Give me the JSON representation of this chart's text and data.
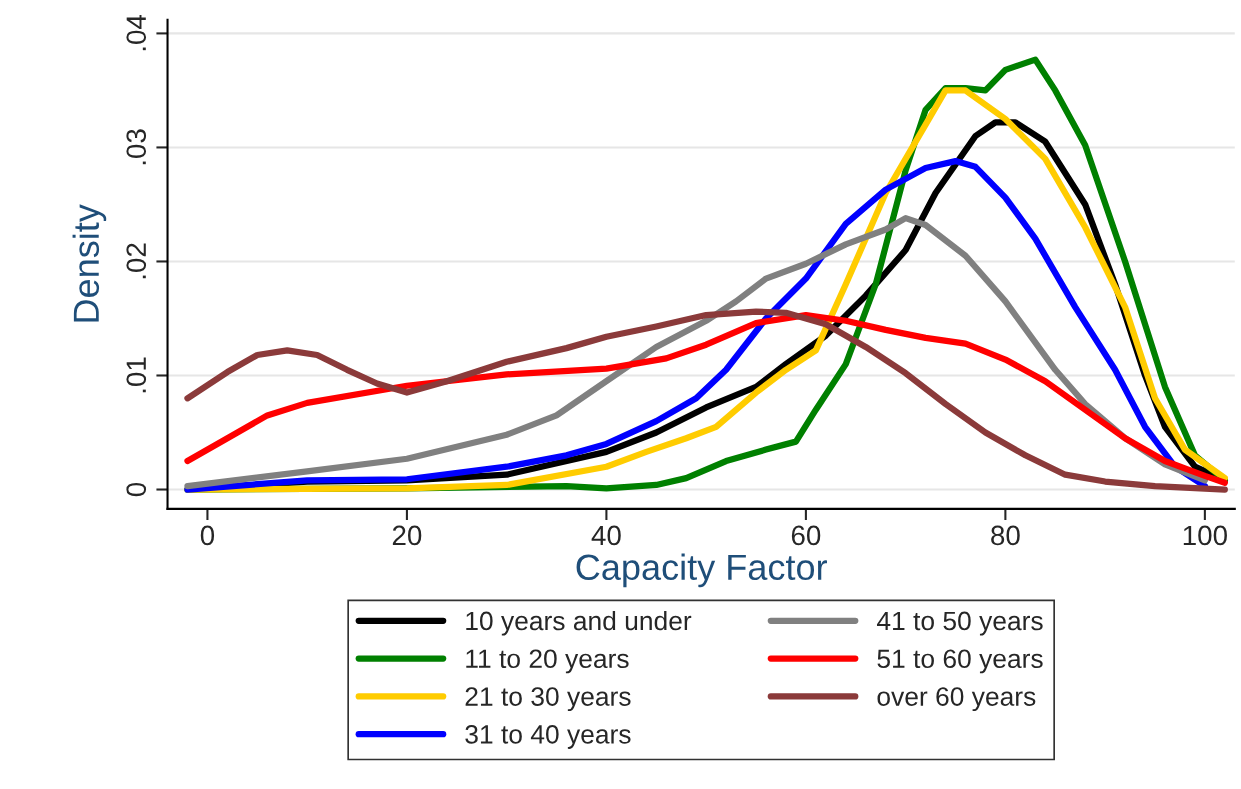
{
  "chart_data": {
    "type": "line",
    "xlabel": "Capacity Factor",
    "ylabel": "Density",
    "xlim": [
      -4,
      103
    ],
    "ylim": [
      -0.0017,
      0.0412
    ],
    "xticks": [
      0,
      20,
      40,
      60,
      80,
      100
    ],
    "yticks": [
      {
        "value": 0,
        "label": "0"
      },
      {
        "value": 0.01,
        "label": ".01"
      },
      {
        "value": 0.02,
        "label": ".02"
      },
      {
        "value": 0.03,
        "label": ".03"
      },
      {
        "value": 0.04,
        "label": ".04"
      }
    ],
    "grid": "y",
    "legend": "bottom",
    "line_style": "solid",
    "marker": "none",
    "series": [
      {
        "name": "10 years and under",
        "color": "#000000",
        "x": [
          -2,
          10,
          20,
          30,
          40,
          45,
          50,
          55,
          58,
          62,
          66,
          70,
          73,
          77,
          79,
          81,
          84,
          88,
          91,
          94,
          96,
          99,
          102
        ],
        "values": [
          0,
          0.0007,
          0.0008,
          0.0013,
          0.0033,
          0.005,
          0.0072,
          0.009,
          0.011,
          0.0135,
          0.017,
          0.021,
          0.026,
          0.031,
          0.0322,
          0.0322,
          0.0305,
          0.025,
          0.018,
          0.01,
          0.0055,
          0.002,
          0.0008
        ]
      },
      {
        "name": "11 to 20 years",
        "color": "#008000",
        "x": [
          -2,
          20,
          36,
          40,
          45,
          48,
          52,
          56,
          59,
          61,
          64,
          67,
          70,
          72,
          74,
          76,
          78,
          80,
          83,
          85,
          88,
          92,
          96,
          99,
          102
        ],
        "values": [
          0,
          0.0001,
          0.0003,
          0.0001,
          0.0004,
          0.001,
          0.0025,
          0.0035,
          0.0042,
          0.007,
          0.011,
          0.018,
          0.028,
          0.0333,
          0.0352,
          0.0352,
          0.035,
          0.0368,
          0.0377,
          0.035,
          0.0302,
          0.02,
          0.009,
          0.003,
          0.0008
        ]
      },
      {
        "name": "21 to 30 years",
        "color": "#ffcc00",
        "x": [
          -2,
          20,
          30,
          40,
          44,
          48,
          51,
          55,
          58,
          61,
          64,
          68,
          72,
          74,
          76,
          80,
          84,
          88,
          92,
          95,
          98,
          102
        ],
        "values": [
          0,
          0.0001,
          0.0004,
          0.002,
          0.0033,
          0.0045,
          0.0055,
          0.0085,
          0.0105,
          0.0122,
          0.018,
          0.026,
          0.032,
          0.035,
          0.035,
          0.0325,
          0.029,
          0.023,
          0.016,
          0.008,
          0.0035,
          0.001
        ]
      },
      {
        "name": "31 to 40 years",
        "color": "#0000ff",
        "x": [
          -2,
          10,
          20,
          30,
          36,
          40,
          45,
          49,
          52,
          56,
          60,
          64,
          68,
          72,
          75,
          77,
          80,
          83,
          87,
          91,
          94,
          97,
          100
        ],
        "values": [
          0,
          0.0008,
          0.0009,
          0.002,
          0.003,
          0.004,
          0.006,
          0.008,
          0.0105,
          0.015,
          0.0185,
          0.0233,
          0.0263,
          0.0282,
          0.0288,
          0.0283,
          0.0256,
          0.022,
          0.016,
          0.0105,
          0.0055,
          0.002,
          0.0003
        ]
      },
      {
        "name": "41 to 50 years",
        "color": "#808080",
        "x": [
          -2,
          10,
          20,
          30,
          35,
          40,
          45,
          50,
          53,
          56,
          60,
          64,
          68,
          70,
          72,
          76,
          80,
          85,
          88,
          92,
          96,
          100
        ],
        "values": [
          0.0003,
          0.0016,
          0.0027,
          0.0048,
          0.0065,
          0.0095,
          0.0125,
          0.0148,
          0.0165,
          0.0185,
          0.0198,
          0.0215,
          0.0228,
          0.0238,
          0.0232,
          0.0205,
          0.0165,
          0.0105,
          0.0075,
          0.0045,
          0.0022,
          0.0008
        ]
      },
      {
        "name": "51 to 60 years",
        "color": "#ff0000",
        "x": [
          -2,
          2,
          6,
          10,
          20,
          30,
          40,
          46,
          50,
          55,
          60,
          64,
          68,
          72,
          76,
          80,
          84,
          88,
          92,
          96,
          100,
          102
        ],
        "values": [
          0.0025,
          0.0045,
          0.0065,
          0.0076,
          0.0091,
          0.0101,
          0.0106,
          0.0115,
          0.0127,
          0.0146,
          0.0153,
          0.0148,
          0.014,
          0.0133,
          0.0128,
          0.0114,
          0.0095,
          0.007,
          0.0045,
          0.0025,
          0.0012,
          0.0006
        ]
      },
      {
        "name": "over 60 years",
        "color": "#8b3a3a",
        "x": [
          -2,
          2,
          5,
          8,
          11,
          14,
          17,
          20,
          24,
          30,
          36,
          40,
          45,
          50,
          55,
          58,
          62,
          66,
          70,
          74,
          78,
          82,
          86,
          90,
          95,
          102
        ],
        "values": [
          0.008,
          0.0103,
          0.0118,
          0.0122,
          0.0118,
          0.0105,
          0.0093,
          0.0085,
          0.0095,
          0.0112,
          0.0124,
          0.0134,
          0.0143,
          0.0153,
          0.0156,
          0.0155,
          0.0145,
          0.0125,
          0.0102,
          0.0075,
          0.005,
          0.003,
          0.0013,
          0.0007,
          0.0003,
          0
        ]
      }
    ]
  }
}
